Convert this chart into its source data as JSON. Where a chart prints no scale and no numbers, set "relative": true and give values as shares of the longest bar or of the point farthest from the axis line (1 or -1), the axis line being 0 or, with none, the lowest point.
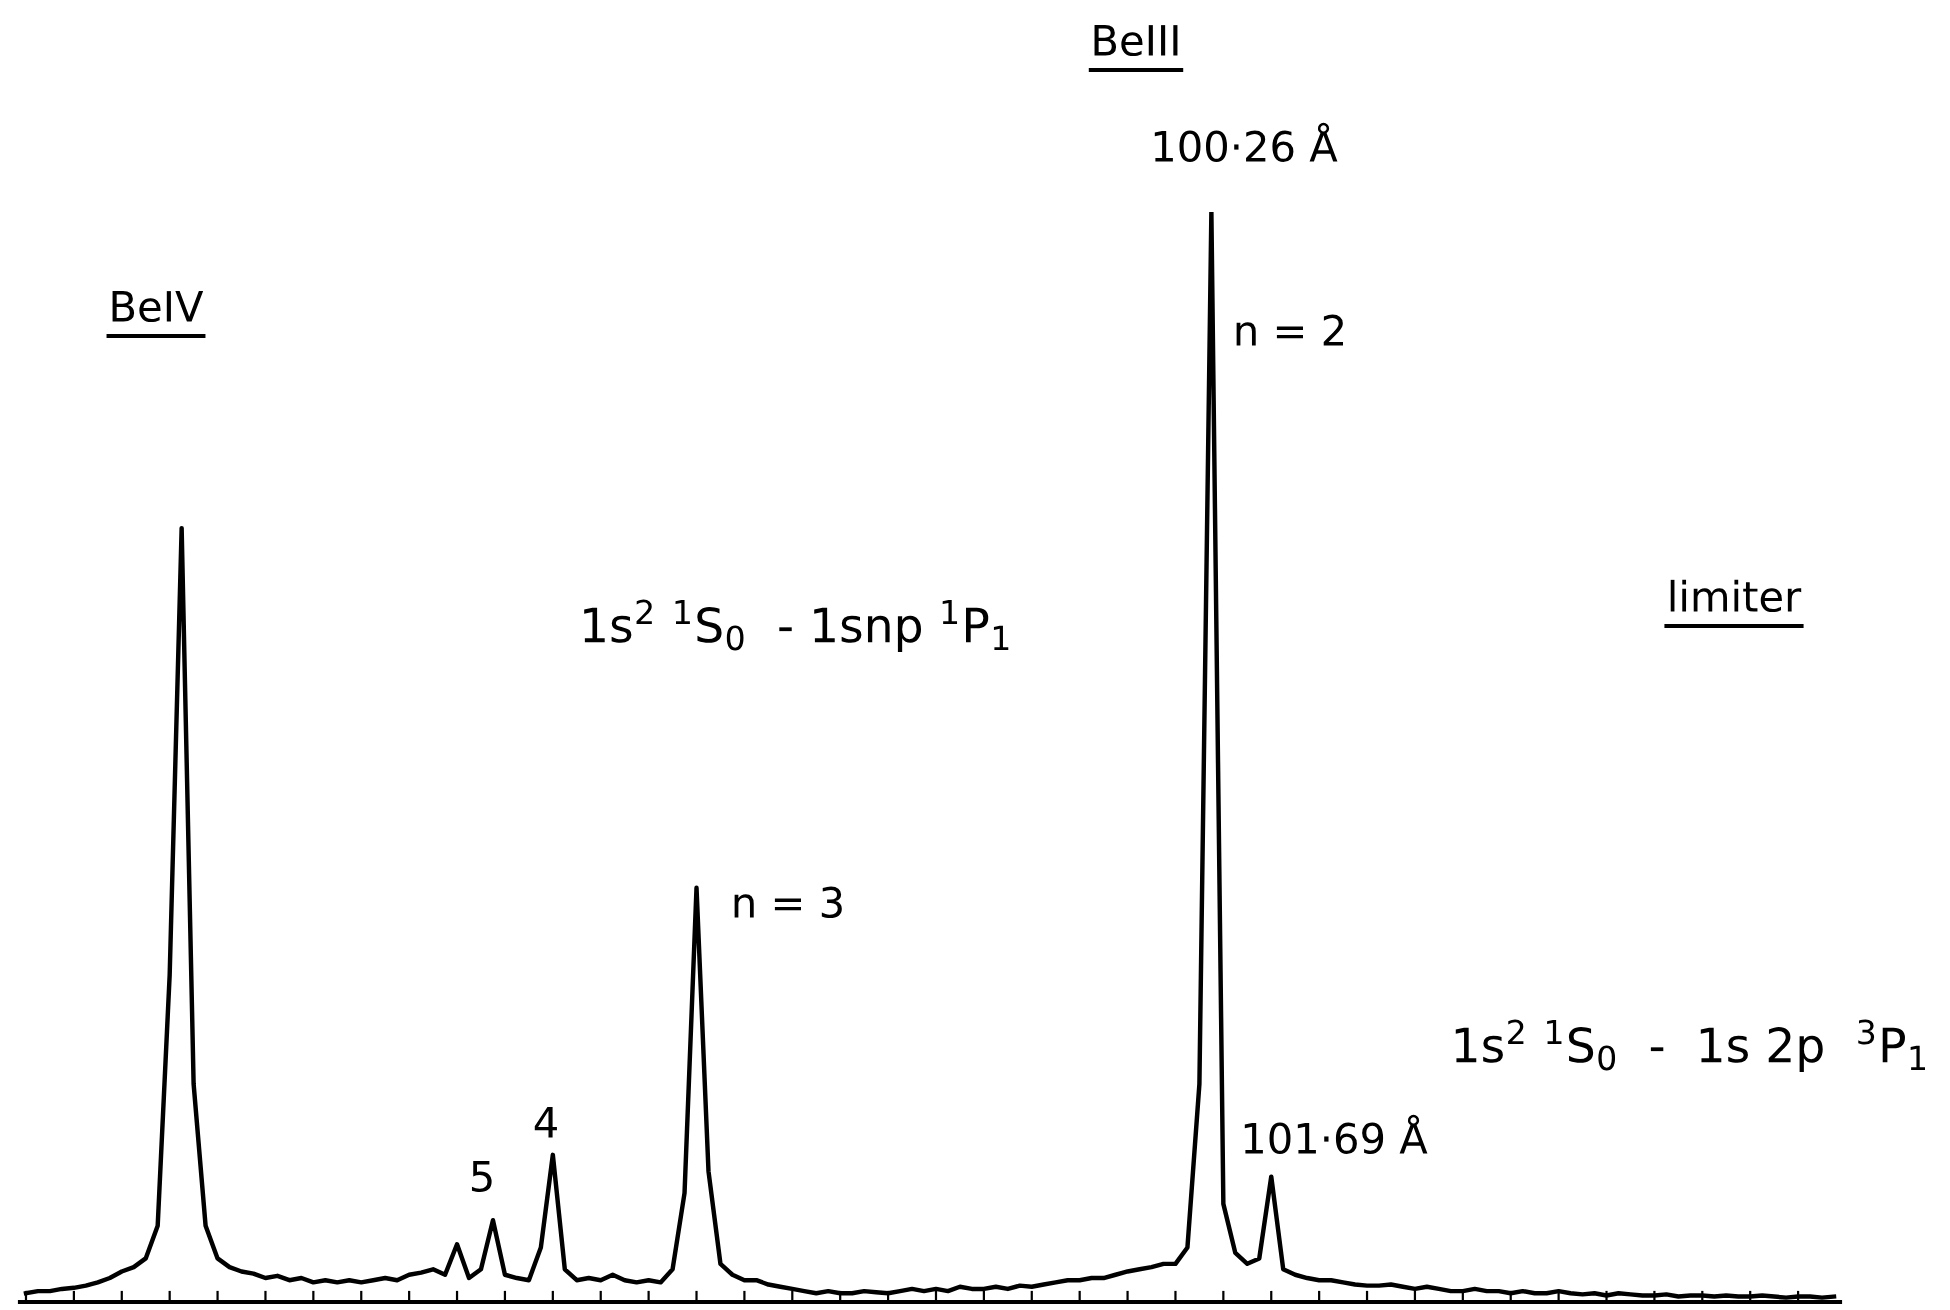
{
  "chart_data": {
    "type": "line",
    "relative": true,
    "grid": false,
    "legend": false,
    "marker": "none",
    "line_style": "solid",
    "categories": [
      null,
      null,
      null,
      null,
      null,
      null,
      null,
      null,
      null,
      null,
      null,
      null,
      null,
      null,
      null,
      null,
      null,
      null,
      null,
      null,
      null,
      null,
      null,
      null,
      null,
      null,
      null,
      null,
      null,
      null,
      null,
      null,
      null,
      null,
      null,
      null,
      null,
      null,
      null,
      null,
      null,
      null,
      null,
      null,
      null,
      null,
      null,
      null,
      null,
      null,
      null,
      null,
      null,
      null,
      null,
      null,
      null,
      null,
      null,
      null,
      null,
      null,
      null,
      null,
      null,
      null,
      null,
      null,
      null,
      null,
      null,
      null,
      null,
      null,
      null,
      null,
      null,
      null,
      null,
      null,
      null,
      null,
      null,
      null,
      null,
      null,
      null,
      null,
      null,
      null,
      null,
      null,
      null,
      null,
      null,
      null,
      null,
      null,
      null,
      null,
      null,
      null,
      null,
      null,
      null,
      null,
      null,
      null,
      null,
      null,
      null,
      null,
      null,
      null,
      null,
      null,
      null,
      null,
      null,
      null,
      null,
      null,
      null,
      null,
      null,
      null,
      null,
      null,
      null,
      null,
      null,
      null,
      null,
      null,
      null,
      null,
      null,
      null,
      null,
      null,
      null,
      null,
      null,
      null,
      null,
      null,
      null,
      null,
      null,
      null,
      null,
      null
    ],
    "series": [
      {
        "color": "#000000",
        "values": [
          0.008,
          0.01,
          0.01,
          0.012,
          0.013,
          0.015,
          0.018,
          0.022,
          0.028,
          0.032,
          0.04,
          0.07,
          0.3,
          0.71,
          0.2,
          0.07,
          0.04,
          0.032,
          0.028,
          0.026,
          0.022,
          0.024,
          0.02,
          0.022,
          0.018,
          0.02,
          0.018,
          0.02,
          0.018,
          0.02,
          0.022,
          0.02,
          0.025,
          0.027,
          0.03,
          0.025,
          0.053,
          0.022,
          0.03,
          0.075,
          0.025,
          0.022,
          0.02,
          0.05,
          0.135,
          0.03,
          0.02,
          0.022,
          0.02,
          0.025,
          0.02,
          0.018,
          0.02,
          0.018,
          0.03,
          0.1,
          0.38,
          0.12,
          0.035,
          0.025,
          0.02,
          0.02,
          0.016,
          0.014,
          0.012,
          0.01,
          0.008,
          0.01,
          0.008,
          0.008,
          0.01,
          0.009,
          0.008,
          0.01,
          0.012,
          0.01,
          0.012,
          0.01,
          0.014,
          0.012,
          0.012,
          0.014,
          0.012,
          0.015,
          0.014,
          0.016,
          0.018,
          0.02,
          0.02,
          0.022,
          0.022,
          0.025,
          0.028,
          0.03,
          0.032,
          0.035,
          0.035,
          0.05,
          0.2,
          1,
          0.09,
          0.045,
          0.035,
          0.04,
          0.115,
          0.03,
          0.025,
          0.022,
          0.02,
          0.02,
          0.018,
          0.016,
          0.015,
          0.015,
          0.016,
          0.014,
          0.012,
          0.014,
          0.012,
          0.01,
          0.01,
          0.012,
          0.01,
          0.01,
          0.008,
          0.01,
          0.008,
          0.008,
          0.01,
          0.008,
          0.007,
          0.008,
          0.006,
          0.008,
          0.007,
          0.006,
          0.006,
          0.007,
          0.005,
          0.006,
          0.006,
          0.005,
          0.006,
          0.005,
          0.005,
          0.006,
          0.005,
          0.004,
          0.005,
          0.005,
          0.004,
          0.005
        ]
      }
    ],
    "annotations": [
      "BeIII",
      "BeIV",
      "limiter",
      "100·26 Å",
      "n = 2",
      "1s$^{2}$ $^{1}$S$_{0}$  - 1snp $^{1}$P$_{1}$",
      "n = 3",
      "4",
      "5",
      "1s$^{2}$ $^{1}$S$_{0}$  -  1s 2p  $^{3}$P$_{1}$",
      "101·69 Å"
    ]
  }
}
